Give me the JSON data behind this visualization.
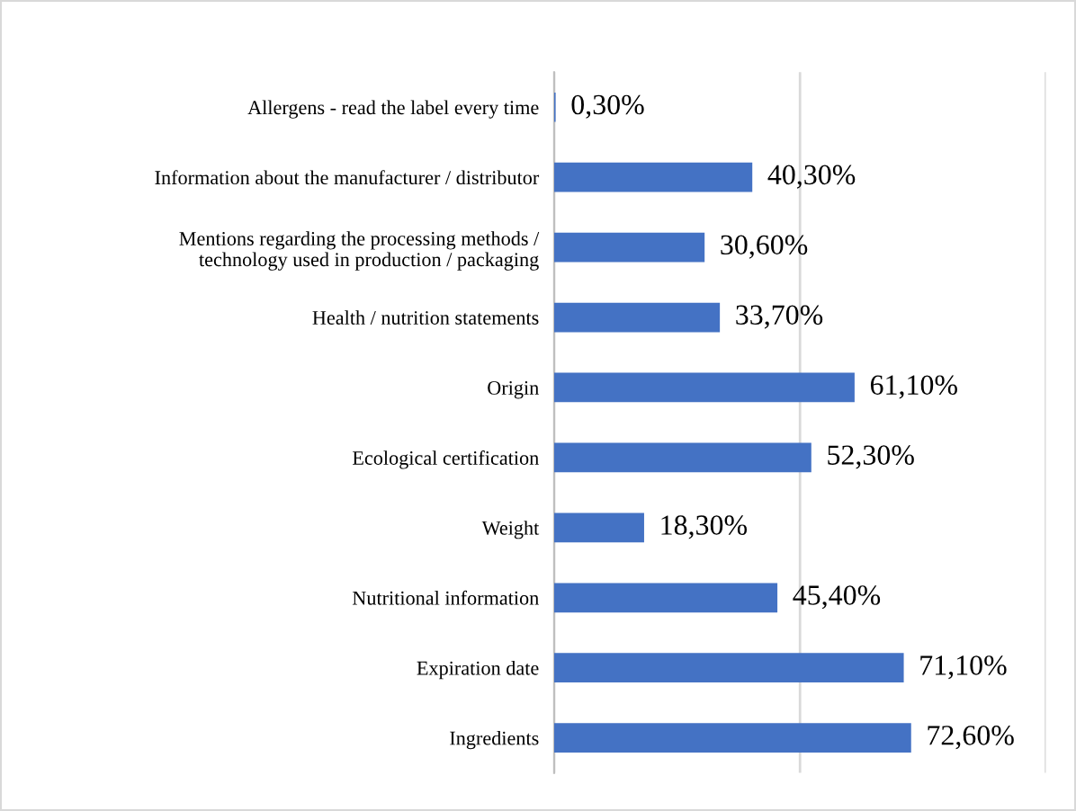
{
  "chart_data": {
    "type": "bar",
    "orientation": "horizontal",
    "categories": [
      "Allergens - read the label every time",
      "Information about the manufacturer / distributor",
      "Mentions regarding the processing methods /\ntechnology used in production / packaging",
      "Health / nutrition statements",
      "Origin",
      "Ecological certification",
      "Weight",
      "Nutritional information",
      "Expiration date",
      "Ingredients"
    ],
    "values": [
      0.3,
      40.3,
      30.6,
      33.7,
      61.1,
      52.3,
      18.3,
      45.4,
      71.1,
      72.6
    ],
    "value_labels": [
      "0,30%",
      "40,30%",
      "30,60%",
      "33,70%",
      "61,10%",
      "52,30%",
      "18,30%",
      "45,40%",
      "71,10%",
      "72,60%"
    ],
    "color": "#4472c4",
    "xlim": [
      0,
      100
    ],
    "xticks": [
      {
        "value": 0,
        "label": null
      },
      {
        "value": 50,
        "label": null
      },
      {
        "value": 100,
        "label": null
      }
    ],
    "grid": "x",
    "tick_labels": "y",
    "legend": false
  }
}
